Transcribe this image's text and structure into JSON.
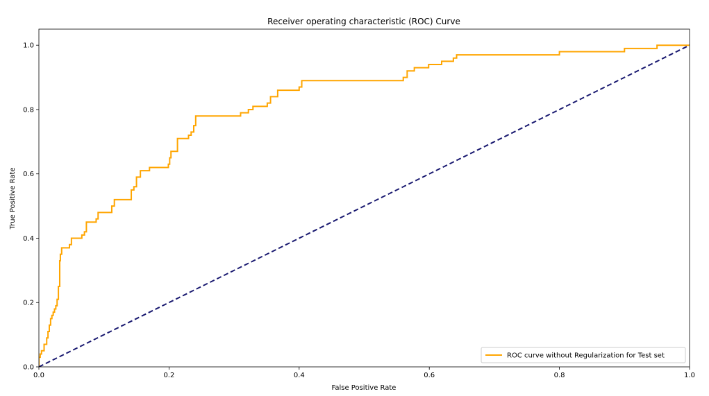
{
  "chart_data": {
    "type": "line",
    "title": "Receiver operating characteristic (ROC) Curve",
    "xlabel": "False Positive Rate",
    "ylabel": "True Positive Rate",
    "xlim": [
      0.0,
      1.0
    ],
    "ylim": [
      0.0,
      1.05
    ],
    "xticks": [
      0.0,
      0.2,
      0.4,
      0.6,
      0.8,
      1.0
    ],
    "xtick_labels": [
      "0.0",
      "0.2",
      "0.4",
      "0.6",
      "0.8",
      "1.0"
    ],
    "yticks": [
      0.0,
      0.2,
      0.4,
      0.6,
      0.8,
      1.0
    ],
    "ytick_labels": [
      "0.0",
      "0.2",
      "0.4",
      "0.6",
      "0.8",
      "1.0"
    ],
    "grid": false,
    "legend_position": "lower-right",
    "series": [
      {
        "name": "ROC curve without Regularization for Test set",
        "color": "#FFA500",
        "style": "solid",
        "steps": true,
        "x": [
          0.0,
          0.002,
          0.004,
          0.006,
          0.008,
          0.012,
          0.014,
          0.016,
          0.018,
          0.02,
          0.022,
          0.024,
          0.026,
          0.028,
          0.03,
          0.032,
          0.033,
          0.035,
          0.036,
          0.037,
          0.047,
          0.05,
          0.066,
          0.07,
          0.073,
          0.085,
          0.088,
          0.091,
          0.112,
          0.116,
          0.142,
          0.146,
          0.15,
          0.156,
          0.17,
          0.196,
          0.199,
          0.201,
          0.203,
          0.213,
          0.23,
          0.234,
          0.238,
          0.241,
          0.306,
          0.31,
          0.322,
          0.329,
          0.351,
          0.356,
          0.367,
          0.37,
          0.4,
          0.404,
          0.468,
          0.56,
          0.566,
          0.577,
          0.599,
          0.6,
          0.619,
          0.637,
          0.642,
          0.793,
          0.8,
          0.9,
          0.95,
          1.0
        ],
        "y": [
          0.03,
          0.04,
          0.05,
          0.05,
          0.07,
          0.09,
          0.11,
          0.13,
          0.15,
          0.16,
          0.17,
          0.18,
          0.19,
          0.21,
          0.25,
          0.33,
          0.35,
          0.37,
          0.37,
          0.37,
          0.38,
          0.4,
          0.41,
          0.42,
          0.45,
          0.45,
          0.46,
          0.48,
          0.5,
          0.52,
          0.55,
          0.56,
          0.59,
          0.61,
          0.62,
          0.62,
          0.63,
          0.65,
          0.67,
          0.71,
          0.72,
          0.73,
          0.75,
          0.78,
          0.78,
          0.79,
          0.8,
          0.81,
          0.82,
          0.84,
          0.86,
          0.86,
          0.87,
          0.89,
          0.89,
          0.9,
          0.92,
          0.93,
          0.94,
          0.94,
          0.95,
          0.96,
          0.97,
          0.97,
          0.98,
          0.99,
          1.0,
          1.0
        ]
      },
      {
        "name": "",
        "color": "#191970",
        "style": "dashed",
        "steps": false,
        "x": [
          0.0,
          1.0
        ],
        "y": [
          0.0,
          1.0
        ]
      }
    ]
  }
}
